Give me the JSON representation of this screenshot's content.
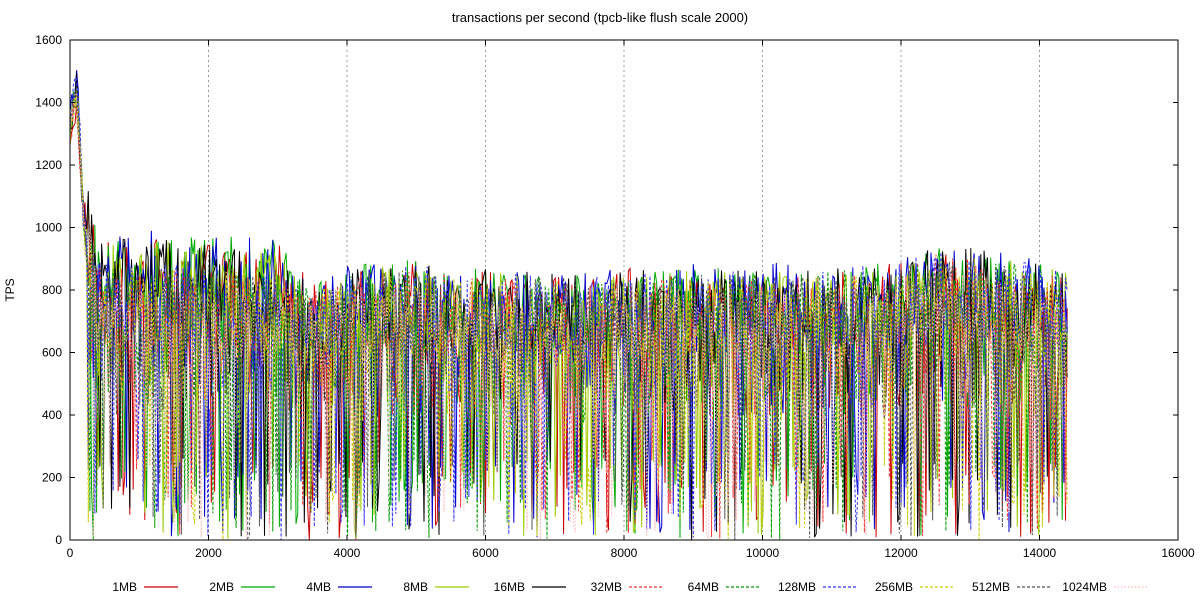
{
  "chart_data": {
    "type": "line",
    "title": "transactions per second (tpcb-like flush scale 2000)",
    "xlabel": "",
    "ylabel": "TPS",
    "xlim": [
      0,
      16000
    ],
    "ylim": [
      0,
      1600
    ],
    "x_ticks": [
      0,
      2000,
      4000,
      6000,
      8000,
      10000,
      12000,
      14000,
      16000
    ],
    "y_ticks": [
      0,
      200,
      400,
      600,
      800,
      1000,
      1200,
      1400,
      1600
    ],
    "grid": "vertical dashed at x ticks",
    "legend_position": "bottom",
    "x_max_data": 14400,
    "series": [
      {
        "name": "1MB",
        "color": "#cc0000",
        "style": "solid",
        "x": [
          0,
          100,
          200,
          400,
          1000,
          2000,
          3000,
          3500,
          4000,
          5000,
          6000,
          7000,
          8000,
          9000,
          10000,
          11000,
          12000,
          12500,
          13000,
          13500,
          14000,
          14400
        ],
        "y": [
          1300,
          1400,
          1050,
          780,
          800,
          790,
          800,
          650,
          700,
          720,
          690,
          680,
          700,
          700,
          680,
          690,
          720,
          760,
          740,
          730,
          720,
          700
        ]
      },
      {
        "name": "2MB",
        "color": "#00aa00",
        "style": "solid",
        "x": [
          0,
          100,
          200,
          400,
          1000,
          2000,
          3000,
          3500,
          4000,
          5000,
          6000,
          7000,
          8000,
          9000,
          10000,
          11000,
          12000,
          12500,
          13000,
          13500,
          14000,
          14400
        ],
        "y": [
          1350,
          1450,
          1000,
          800,
          820,
          800,
          810,
          640,
          720,
          730,
          700,
          690,
          690,
          710,
          700,
          700,
          730,
          780,
          760,
          740,
          720,
          710
        ]
      },
      {
        "name": "4MB",
        "color": "#0000cc",
        "style": "solid",
        "x": [
          0,
          100,
          200,
          400,
          1000,
          2000,
          3000,
          3500,
          4000,
          5000,
          6000,
          7000,
          8000,
          9000,
          10000,
          11000,
          12000,
          12500,
          13000,
          13500,
          14000,
          14400
        ],
        "y": [
          1380,
          1480,
          1020,
          790,
          830,
          810,
          800,
          630,
          710,
          720,
          700,
          680,
          700,
          720,
          720,
          710,
          740,
          790,
          770,
          750,
          730,
          700
        ]
      },
      {
        "name": "8MB",
        "color": "#99cc00",
        "style": "solid",
        "x": [
          0,
          100,
          200,
          400,
          1000,
          2000,
          3000,
          3500,
          4000,
          5000,
          6000,
          7000,
          8000,
          9000,
          10000,
          11000,
          12000,
          12500,
          13000,
          13500,
          14000,
          14400
        ],
        "y": [
          1320,
          1420,
          1010,
          780,
          790,
          780,
          780,
          620,
          700,
          710,
          690,
          680,
          690,
          700,
          690,
          690,
          720,
          770,
          750,
          730,
          710,
          700
        ]
      },
      {
        "name": "16MB",
        "color": "#000000",
        "style": "solid",
        "x": [
          0,
          100,
          200,
          400,
          1000,
          2000,
          3000,
          3500,
          4000,
          5000,
          6000,
          7000,
          8000,
          9000,
          10000,
          11000,
          12000,
          12500,
          13000,
          13500,
          14000,
          14400
        ],
        "y": [
          1340,
          1440,
          1030,
          790,
          800,
          790,
          790,
          640,
          710,
          720,
          700,
          690,
          700,
          710,
          700,
          700,
          730,
          790,
          770,
          740,
          720,
          700
        ]
      },
      {
        "name": "32MB",
        "color": "#ff3333",
        "style": "dashed",
        "x": [
          0,
          100,
          200,
          400,
          1000,
          2000,
          3000,
          3500,
          4000,
          5000,
          6000,
          7000,
          8000,
          9000,
          10000,
          11000,
          12000,
          12500,
          13000,
          13500,
          14000,
          14400
        ],
        "y": [
          1300,
          1420,
          1000,
          700,
          700,
          690,
          690,
          620,
          680,
          690,
          670,
          660,
          670,
          680,
          670,
          680,
          700,
          750,
          730,
          710,
          700,
          690
        ]
      },
      {
        "name": "64MB",
        "color": "#009900",
        "style": "dashed",
        "x": [
          0,
          100,
          200,
          400,
          1000,
          2000,
          3000,
          3500,
          4000,
          5000,
          6000,
          7000,
          8000,
          9000,
          10000,
          11000,
          12000,
          12500,
          13000,
          13500,
          14000,
          14400
        ],
        "y": [
          1310,
          1430,
          1010,
          710,
          710,
          700,
          700,
          630,
          690,
          700,
          680,
          670,
          680,
          690,
          680,
          690,
          710,
          760,
          740,
          720,
          710,
          690
        ]
      },
      {
        "name": "128MB",
        "color": "#3333ff",
        "style": "dashed",
        "x": [
          0,
          100,
          200,
          400,
          1000,
          2000,
          3000,
          3500,
          4000,
          5000,
          6000,
          7000,
          8000,
          9000,
          10000,
          11000,
          12000,
          12500,
          13000,
          13500,
          14000,
          14400
        ],
        "y": [
          1320,
          1500,
          1020,
          720,
          720,
          710,
          710,
          640,
          700,
          710,
          690,
          680,
          690,
          700,
          690,
          700,
          720,
          770,
          750,
          730,
          710,
          700
        ]
      },
      {
        "name": "256MB",
        "color": "#cccc00",
        "style": "dashed",
        "x": [
          0,
          100,
          200,
          400,
          1000,
          2000,
          3000,
          3500,
          4000,
          5000,
          6000,
          7000,
          8000,
          9000,
          10000,
          11000,
          12000,
          12500,
          13000,
          13500,
          14000,
          14400
        ],
        "y": [
          1300,
          1410,
          1000,
          700,
          700,
          690,
          690,
          620,
          680,
          690,
          670,
          660,
          670,
          680,
          670,
          680,
          700,
          750,
          760,
          710,
          700,
          690
        ]
      },
      {
        "name": "512MB",
        "color": "#555555",
        "style": "dashed",
        "x": [
          0,
          100,
          200,
          400,
          1000,
          2000,
          3000,
          3500,
          4000,
          5000,
          6000,
          7000,
          8000,
          9000,
          10000,
          11000,
          12000,
          12500,
          13000,
          13500,
          14000,
          14400
        ],
        "y": [
          1310,
          1420,
          1010,
          690,
          690,
          690,
          690,
          630,
          690,
          690,
          680,
          670,
          680,
          680,
          680,
          680,
          700,
          750,
          740,
          720,
          700,
          690
        ]
      },
      {
        "name": "1024MB",
        "color": "#ffb6b6",
        "style": "dotted",
        "x": [
          0,
          100,
          200,
          400,
          1000,
          2000,
          3000,
          3500,
          4000,
          5000,
          6000,
          7000,
          8000,
          9000,
          10000,
          11000,
          12000,
          12500,
          13000,
          13500,
          14000,
          14400
        ],
        "y": [
          1300,
          1400,
          1000,
          640,
          650,
          640,
          640,
          620,
          640,
          650,
          640,
          640,
          640,
          650,
          640,
          640,
          660,
          700,
          690,
          680,
          660,
          650
        ]
      }
    ]
  }
}
